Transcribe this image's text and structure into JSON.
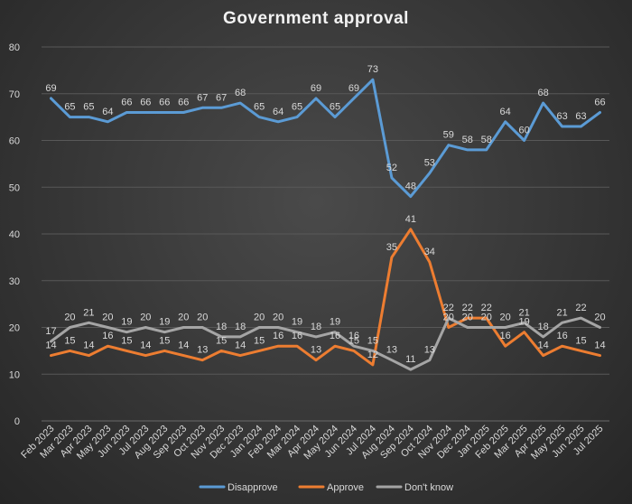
{
  "chart_data": {
    "type": "line",
    "title": "Government approval",
    "xlabel": "",
    "ylabel": "",
    "ylim": [
      0,
      80
    ],
    "yticks": [
      0,
      10,
      20,
      30,
      40,
      50,
      60,
      70,
      80
    ],
    "grid": true,
    "legend_position": "bottom",
    "categories": [
      "Feb 2023",
      "Mar 2023",
      "Apr 2023",
      "May 2023",
      "Jun 2023",
      "Jul 2023",
      "Aug 2023",
      "Sep 2023",
      "Oct 2023",
      "Nov 2023",
      "Dec 2023",
      "Jan 2024",
      "Feb 2024",
      "Mar 2024",
      "Apr 2024",
      "May 2024",
      "Jun 2024",
      "Jul 2024",
      "Aug 2024",
      "Sep 2024",
      "Oct 2024",
      "Nov 2024",
      "Dec 2024",
      "Jan 2025",
      "Feb 2025",
      "Mar 2025",
      "Apr 2025",
      "May 2025",
      "Jun 2025",
      "Jul 2025"
    ],
    "series": [
      {
        "name": "Disapprove",
        "color": "#5b9bd5",
        "values": [
          69,
          65,
          65,
          64,
          66,
          66,
          66,
          66,
          67,
          67,
          68,
          65,
          64,
          65,
          69,
          65,
          69,
          73,
          52,
          48,
          53,
          59,
          58,
          58,
          64,
          60,
          68,
          63,
          63,
          66
        ]
      },
      {
        "name": "Approve",
        "color": "#ed7d31",
        "values": [
          14,
          15,
          14,
          16,
          15,
          14,
          15,
          14,
          13,
          15,
          14,
          15,
          16,
          16,
          13,
          16,
          15,
          12,
          35,
          41,
          34,
          20,
          22,
          22,
          16,
          19,
          14,
          16,
          15,
          14
        ]
      },
      {
        "name": "Don't know",
        "color": "#a5a5a5",
        "values": [
          17,
          20,
          21,
          20,
          19,
          20,
          19,
          20,
          20,
          18,
          18,
          20,
          20,
          19,
          18,
          19,
          16,
          15,
          13,
          11,
          13,
          22,
          20,
          20,
          20,
          21,
          18,
          21,
          22,
          20
        ]
      }
    ]
  }
}
